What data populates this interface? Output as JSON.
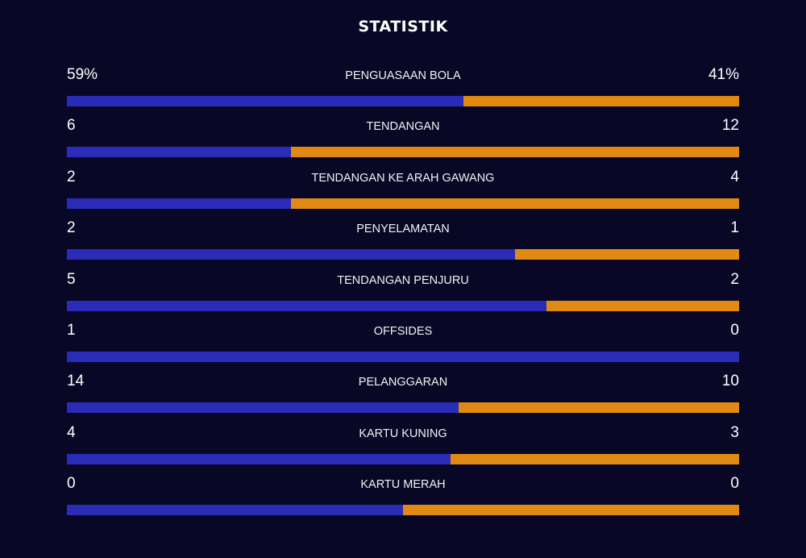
{
  "title": "STATISTIK",
  "colors": {
    "background": "#080826",
    "home": "#2a2cb8",
    "away": "#e08a14"
  },
  "stats": [
    {
      "label": "PENGUASAAN BOLA",
      "home": "59%",
      "away": "41%",
      "home_share": 0.59
    },
    {
      "label": "TENDANGAN",
      "home": "6",
      "away": "12",
      "home_share": 0.333
    },
    {
      "label": "TENDANGAN KE ARAH GAWANG",
      "home": "2",
      "away": "4",
      "home_share": 0.333
    },
    {
      "label": "PENYELAMATAN",
      "home": "2",
      "away": "1",
      "home_share": 0.667
    },
    {
      "label": "TENDANGAN PENJURU",
      "home": "5",
      "away": "2",
      "home_share": 0.714
    },
    {
      "label": "OFFSIDES",
      "home": "1",
      "away": "0",
      "home_share": 1.0
    },
    {
      "label": "PELANGGARAN",
      "home": "14",
      "away": "10",
      "home_share": 0.583
    },
    {
      "label": "KARTU KUNING",
      "home": "4",
      "away": "3",
      "home_share": 0.571
    },
    {
      "label": "KARTU MERAH",
      "home": "0",
      "away": "0",
      "home_share": 0.5
    }
  ]
}
